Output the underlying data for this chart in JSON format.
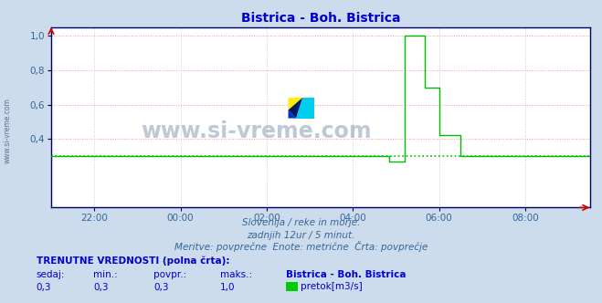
{
  "title": "Bistrica - Boh. Bistrica",
  "title_color": "#0000cc",
  "bg_color": "#ccdcec",
  "plot_bg_color": "#ffffff",
  "grid_color_h": "#ff9999",
  "grid_color_v": "#cccccc",
  "grid_style": ":",
  "xlabel_color": "#336699",
  "ylabel_color": "#336699",
  "axis_color": "#000066",
  "ytick_labels": [
    "0,4",
    "0,6",
    "0,8",
    "1,0"
  ],
  "ytick_values": [
    0.4,
    0.6,
    0.8,
    1.0
  ],
  "xtick_labels": [
    "22:00",
    "00:00",
    "02:00",
    "04:00",
    "06:00",
    "08:00"
  ],
  "xtick_values": [
    -2,
    0,
    2,
    4,
    6,
    8
  ],
  "xmin": -3,
  "xmax": 9.5,
  "ymin": 0.0,
  "ymax": 1.05,
  "line_color": "#00bb00",
  "dashed_line_color": "#00bb00",
  "dashed_line_value": 0.3,
  "watermark_text": "www.si-vreme.com",
  "watermark_color": "#1a3a6b",
  "watermark_alpha": 0.28,
  "subtitle1": "Slovenija / reke in morje.",
  "subtitle2": "zadnjih 12ur / 5 minut.",
  "subtitle3": "Meritve: povprečne  Enote: metrične  Črta: povprečje",
  "subtitle_color": "#336699",
  "footer_bold": "TRENUTNE VREDNOSTI (polna črta):",
  "footer_headers": [
    "sedaj:",
    "min.:",
    "povpr.:",
    "maks.:",
    "Bistrica - Boh. Bistrica"
  ],
  "footer_values": [
    "0,3",
    "0,3",
    "0,3",
    "1,0"
  ],
  "footer_legend": "pretok[m3/s]",
  "legend_color": "#00cc00",
  "sidewatermark": "www.si-vreme.com",
  "time_data_x": [
    -3,
    -2.5,
    -2,
    -1.5,
    -1,
    -0.5,
    0,
    0.5,
    1,
    1.5,
    2,
    2.5,
    3,
    3.5,
    4,
    4.2,
    4.4,
    4.6,
    4.7,
    4.833,
    5.0,
    5.2,
    5.4,
    5.6,
    5.667,
    5.833,
    6.0,
    6.2,
    6.5,
    7,
    7.5,
    8,
    8.5,
    9,
    9.5
  ],
  "time_data_y": [
    0.3,
    0.3,
    0.3,
    0.3,
    0.3,
    0.3,
    0.3,
    0.3,
    0.3,
    0.3,
    0.3,
    0.3,
    0.3,
    0.3,
    0.3,
    0.3,
    0.3,
    0.3,
    0.3,
    0.27,
    0.27,
    1.0,
    1.0,
    1.0,
    0.7,
    0.7,
    0.42,
    0.42,
    0.3,
    0.3,
    0.3,
    0.3,
    0.3,
    0.3,
    0.3
  ],
  "arrow_color": "#cc0000"
}
